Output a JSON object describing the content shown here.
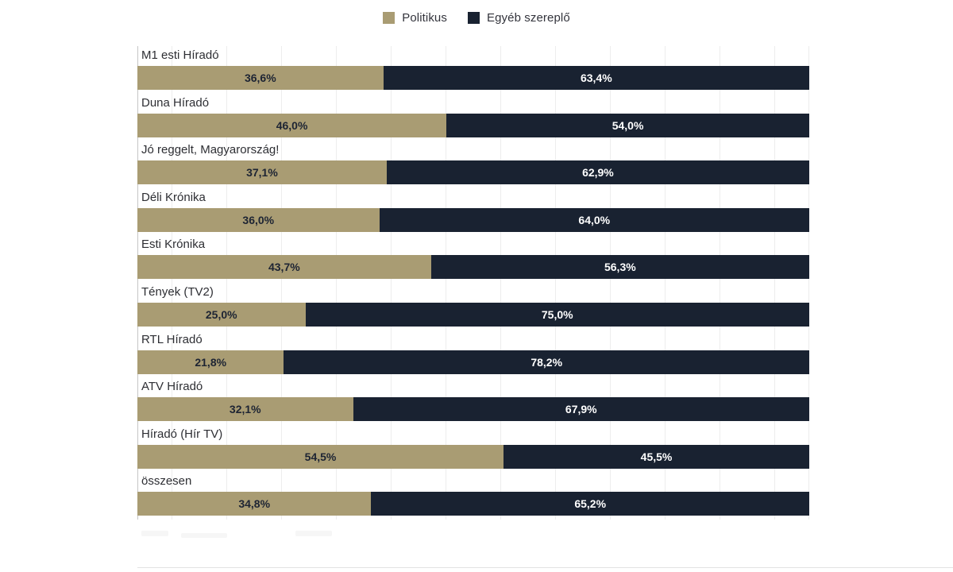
{
  "legend": {
    "items": [
      {
        "label": "Politikus",
        "color": "#a99c73"
      },
      {
        "label": "Egyéb szereplő",
        "color": "#192231"
      }
    ]
  },
  "chart_data": {
    "type": "bar",
    "orientation": "horizontal",
    "stacked": true,
    "unit": "percent",
    "title": "",
    "xlabel": "",
    "ylabel": "",
    "xlim": [
      0,
      100
    ],
    "grid": "faint vertical gridlines",
    "legend_position": "top-center",
    "categories": [
      "M1 esti Híradó",
      "Duna Híradó",
      "Jó reggelt, Magyarország!",
      "Déli Krónika",
      "Esti Krónika",
      "Tények (TV2)",
      "RTL Híradó",
      "ATV Híradó",
      "Híradó (Hír TV)",
      "összesen"
    ],
    "series": [
      {
        "name": "Politikus",
        "color": "#a99c73",
        "text_color": "#1d2433",
        "values": [
          36.6,
          46.0,
          37.1,
          36.0,
          43.7,
          25.0,
          21.8,
          32.1,
          54.5,
          34.8
        ],
        "labels": [
          "36,6%",
          "46,0%",
          "37,1%",
          "36,0%",
          "43,7%",
          "25,0%",
          "21,8%",
          "32,1%",
          "54,5%",
          "34,8%"
        ]
      },
      {
        "name": "Egyéb szereplő",
        "color": "#192231",
        "text_color": "#ffffff",
        "values": [
          63.4,
          54.0,
          62.9,
          64.0,
          56.3,
          75.0,
          78.2,
          67.9,
          45.5,
          65.2
        ],
        "labels": [
          "63,4%",
          "54,0%",
          "62,9%",
          "64,0%",
          "56,3%",
          "75,0%",
          "78,2%",
          "67,9%",
          "45,5%",
          "65,2%"
        ]
      }
    ]
  }
}
